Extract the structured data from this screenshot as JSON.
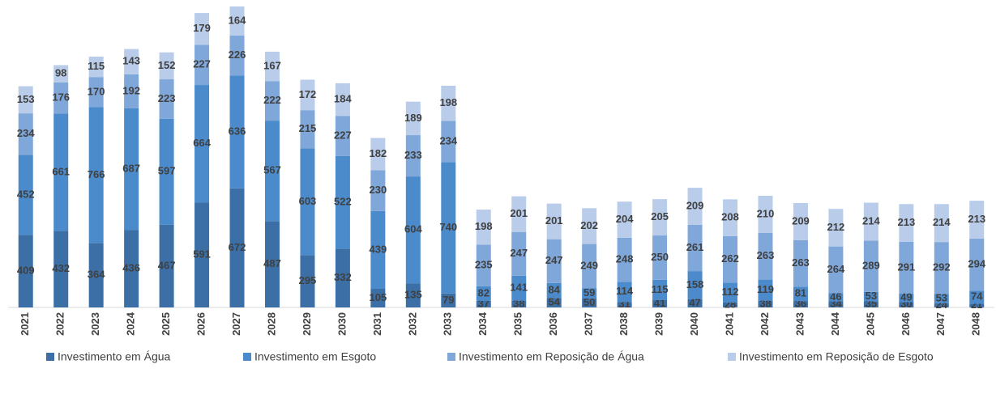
{
  "chart_data": {
    "type": "stacked_bar",
    "categories": [
      "2021",
      "2022",
      "2023",
      "2024",
      "2025",
      "2026",
      "2027",
      "2028",
      "2029",
      "2030",
      "2031",
      "2032",
      "2033",
      "2034",
      "2035",
      "2036",
      "2037",
      "2038",
      "2039",
      "2040",
      "2041",
      "2042",
      "2043",
      "2044",
      "2045",
      "2046",
      "2047",
      "2048"
    ],
    "series": [
      {
        "name": "Investimento em Água",
        "color": "#3b6fa6",
        "values": [
          409,
          432,
          364,
          436,
          467,
          591,
          672,
          487,
          295,
          332,
          105,
          135,
          79,
          37,
          38,
          54,
          50,
          31,
          41,
          47,
          28,
          38,
          36,
          34,
          35,
          30,
          24,
          21
        ]
      },
      {
        "name": "Investimento em Esgoto",
        "color": "#4b8bcb",
        "values": [
          452,
          661,
          766,
          687,
          597,
          664,
          636,
          567,
          603,
          522,
          439,
          604,
          740,
          82,
          141,
          84,
          59,
          114,
          115,
          158,
          112,
          119,
          81,
          46,
          53,
          49,
          53,
          74
        ]
      },
      {
        "name": "Investimento em Reposição de Água",
        "color": "#7fa7d9",
        "values": [
          234,
          176,
          170,
          192,
          223,
          227,
          226,
          222,
          215,
          227,
          230,
          233,
          234,
          235,
          247,
          247,
          249,
          248,
          250,
          261,
          262,
          263,
          263,
          264,
          289,
          291,
          292,
          294
        ]
      },
      {
        "name": "Investimento em Reposição de Esgoto",
        "color": "#b9cdea",
        "values": [
          153,
          98,
          115,
          143,
          152,
          179,
          164,
          167,
          172,
          184,
          182,
          189,
          198,
          198,
          201,
          201,
          202,
          204,
          205,
          209,
          208,
          210,
          209,
          212,
          214,
          213,
          214,
          213
        ]
      }
    ],
    "legend": "bottom"
  }
}
